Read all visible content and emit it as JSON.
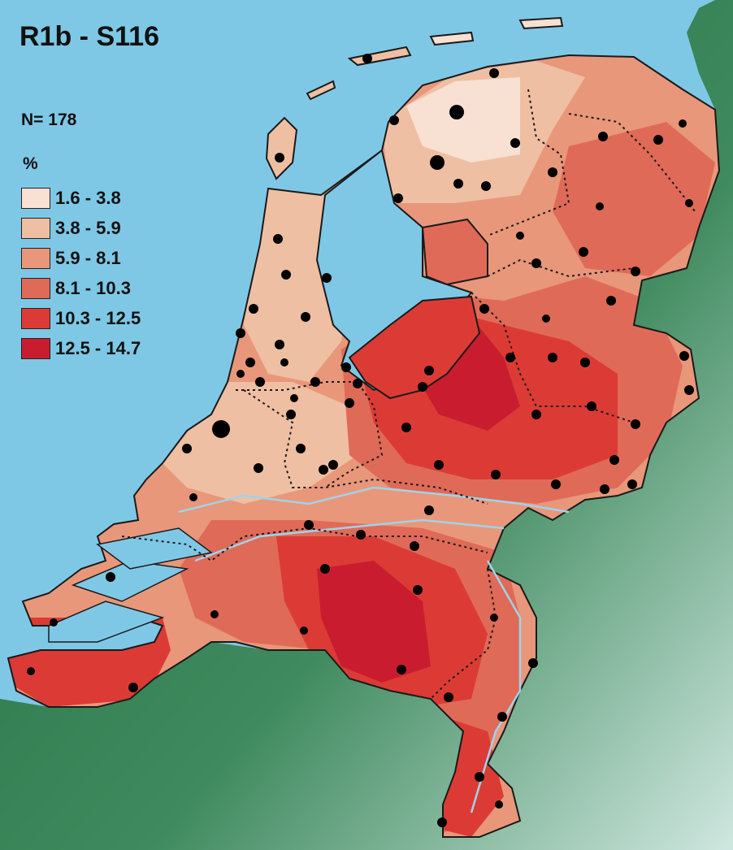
{
  "title": "R1b - S116",
  "sample_size": "N= 178",
  "unit": "%",
  "legend": [
    {
      "label": "1.6 - 3.8",
      "color": "#f8e0d2"
    },
    {
      "label": "3.8 - 5.9",
      "color": "#efbfa3"
    },
    {
      "label": "5.9 - 8.1",
      "color": "#e8977a"
    },
    {
      "label": "8.1 - 10.3",
      "color": "#e06a58"
    },
    {
      "label": "10.3 - 12.5",
      "color": "#dc3b35"
    },
    {
      "label": "12.5 - 14.7",
      "color": "#c91d2f"
    }
  ],
  "colors": {
    "sea": "#7ec8e6",
    "land_outside": "#2f7a4c",
    "border": "#1a1a1a",
    "sample_point": "#000000"
  }
}
